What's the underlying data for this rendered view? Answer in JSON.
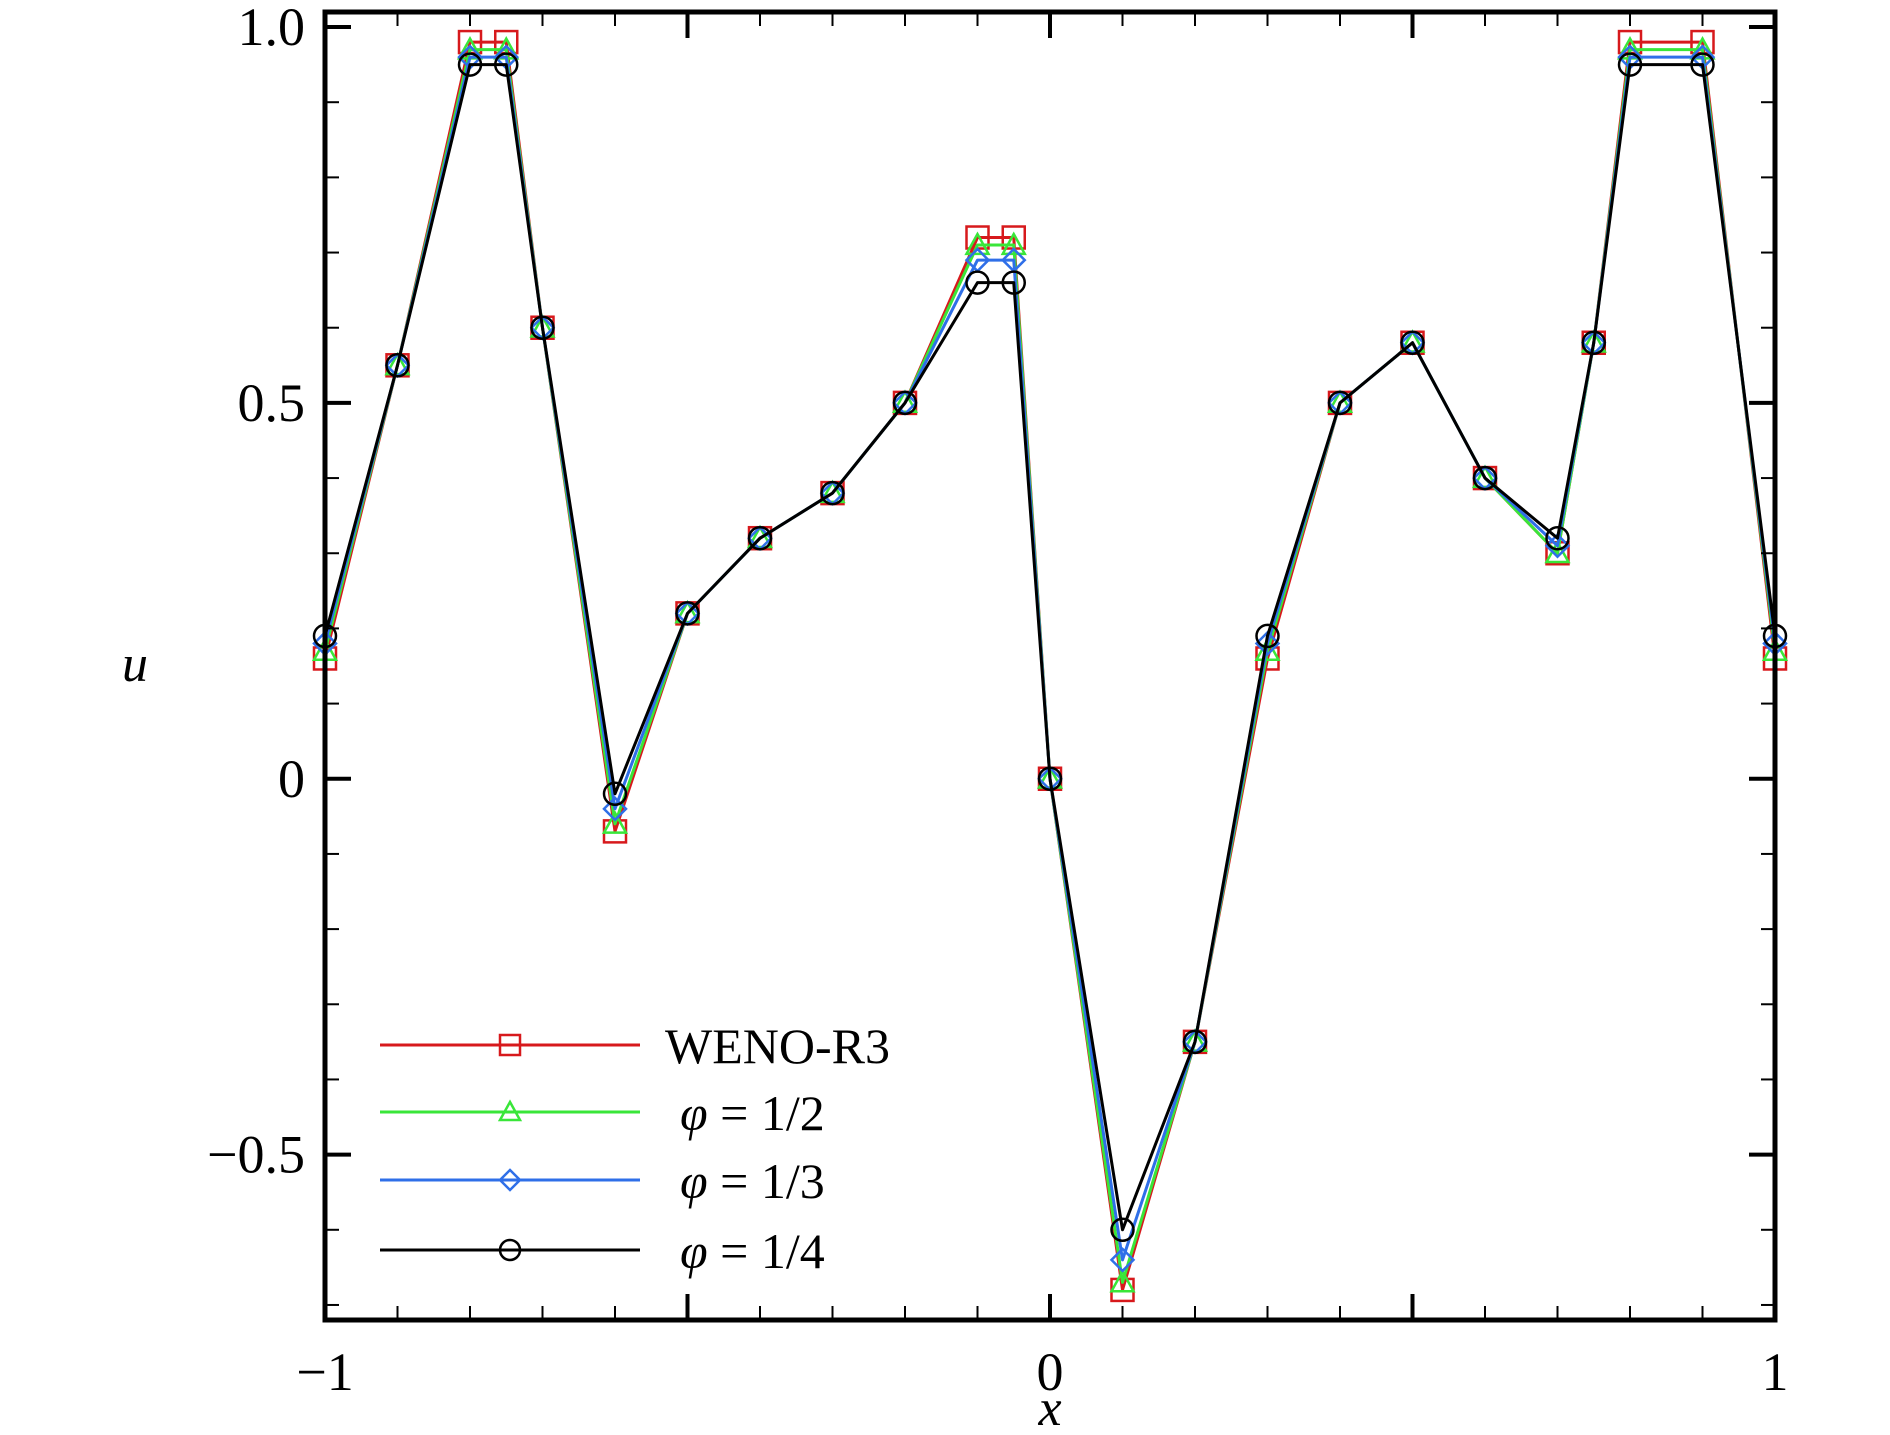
{
  "chart_data": {
    "type": "line",
    "xlabel": "x",
    "ylabel": "u",
    "xlim": [
      -1,
      1
    ],
    "ylim": [
      -0.72,
      1.02
    ],
    "x_ticks": [
      {
        "value": -1,
        "label": "−1"
      },
      {
        "value": 0,
        "label": "0"
      },
      {
        "value": 1,
        "label": "1"
      }
    ],
    "y_ticks": [
      {
        "value": -0.5,
        "label": "−0.5"
      },
      {
        "value": 0,
        "label": "0"
      },
      {
        "value": 0.5,
        "label": "0.5"
      },
      {
        "value": 1.0,
        "label": "1.0"
      }
    ],
    "grid": false,
    "legend_position": "bottom-left",
    "series": [
      {
        "name": "WENO-R3",
        "label_prefix": "",
        "label_value": "WENO-R3",
        "color": "#d7191c",
        "marker": "square",
        "x": [
          -1.0,
          -0.9,
          -0.8,
          -0.75,
          -0.7,
          -0.6,
          -0.5,
          -0.4,
          -0.3,
          -0.2,
          -0.1,
          -0.05,
          0.0,
          0.1,
          0.2,
          0.3,
          0.4,
          0.5,
          0.6,
          0.7,
          0.75,
          0.8,
          0.9,
          1.0
        ],
        "y": [
          0.16,
          0.55,
          0.98,
          0.98,
          0.6,
          -0.07,
          0.22,
          0.32,
          0.38,
          0.5,
          0.72,
          0.72,
          0.0,
          -0.68,
          -0.35,
          0.16,
          0.5,
          0.58,
          0.4,
          0.3,
          0.58,
          0.98,
          0.98,
          0.16
        ]
      },
      {
        "name": "φ = 1/2",
        "label_prefix": "φ",
        "label_value": " = 1/2",
        "color": "#39e639",
        "marker": "triangle",
        "x": [
          -1.0,
          -0.9,
          -0.8,
          -0.75,
          -0.7,
          -0.6,
          -0.5,
          -0.4,
          -0.3,
          -0.2,
          -0.1,
          -0.05,
          0.0,
          0.1,
          0.2,
          0.3,
          0.4,
          0.5,
          0.6,
          0.7,
          0.75,
          0.8,
          0.9,
          1.0
        ],
        "y": [
          0.17,
          0.55,
          0.97,
          0.97,
          0.6,
          -0.06,
          0.22,
          0.32,
          0.38,
          0.5,
          0.71,
          0.71,
          0.0,
          -0.67,
          -0.35,
          0.17,
          0.5,
          0.58,
          0.4,
          0.3,
          0.58,
          0.97,
          0.97,
          0.17
        ]
      },
      {
        "name": "φ = 1/3",
        "label_prefix": "φ",
        "label_value": " = 1/3",
        "color": "#2f6fe8",
        "marker": "diamond",
        "x": [
          -1.0,
          -0.9,
          -0.8,
          -0.75,
          -0.7,
          -0.6,
          -0.5,
          -0.4,
          -0.3,
          -0.2,
          -0.1,
          -0.05,
          0.0,
          0.1,
          0.2,
          0.3,
          0.4,
          0.5,
          0.6,
          0.7,
          0.75,
          0.8,
          0.9,
          1.0
        ],
        "y": [
          0.18,
          0.55,
          0.96,
          0.96,
          0.6,
          -0.04,
          0.22,
          0.32,
          0.38,
          0.5,
          0.69,
          0.69,
          0.0,
          -0.64,
          -0.35,
          0.18,
          0.5,
          0.58,
          0.4,
          0.31,
          0.58,
          0.96,
          0.96,
          0.18
        ]
      },
      {
        "name": "φ = 1/4",
        "label_prefix": "φ",
        "label_value": " = 1/4",
        "color": "#000000",
        "marker": "circle",
        "x": [
          -1.0,
          -0.9,
          -0.8,
          -0.75,
          -0.7,
          -0.6,
          -0.5,
          -0.4,
          -0.3,
          -0.2,
          -0.1,
          -0.05,
          0.0,
          0.1,
          0.2,
          0.3,
          0.4,
          0.5,
          0.6,
          0.7,
          0.75,
          0.8,
          0.9,
          1.0
        ],
        "y": [
          0.19,
          0.55,
          0.95,
          0.95,
          0.6,
          -0.02,
          0.22,
          0.32,
          0.38,
          0.5,
          0.66,
          0.66,
          0.0,
          -0.6,
          -0.35,
          0.19,
          0.5,
          0.58,
          0.4,
          0.32,
          0.58,
          0.95,
          0.95,
          0.19
        ]
      }
    ]
  }
}
